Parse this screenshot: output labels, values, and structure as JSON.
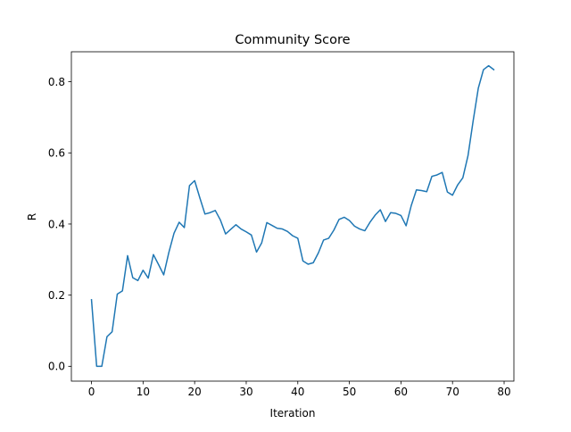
{
  "chart_data": {
    "type": "line",
    "title": "Community Score",
    "xlabel": "Iteration",
    "ylabel": "R",
    "xlim": [
      -3.9,
      81.9
    ],
    "ylim": [
      -0.0418,
      0.8843
    ],
    "xticks": [
      0,
      10,
      20,
      30,
      40,
      50,
      60,
      70,
      80
    ],
    "xtick_labels": [
      "0",
      "10",
      "20",
      "30",
      "40",
      "50",
      "60",
      "70",
      "80"
    ],
    "yticks": [
      0.0,
      0.2,
      0.4,
      0.6,
      0.8
    ],
    "ytick_labels": [
      "0.0",
      "0.2",
      "0.4",
      "0.6",
      "0.8"
    ],
    "grid": false,
    "series": [
      {
        "color": "#1f77b4",
        "x": [
          0,
          1,
          2,
          3,
          4,
          5,
          6,
          7,
          8,
          9,
          10,
          11,
          12,
          13,
          14,
          15,
          16,
          17,
          18,
          19,
          20,
          21,
          22,
          23,
          24,
          25,
          26,
          27,
          28,
          29,
          30,
          31,
          32,
          33,
          34,
          35,
          36,
          37,
          38,
          39,
          40,
          41,
          42,
          43,
          44,
          45,
          46,
          47,
          48,
          49,
          50,
          51,
          52,
          53,
          54,
          55,
          56,
          57,
          58,
          59,
          60,
          61,
          62,
          63,
          64,
          65,
          66,
          67,
          68,
          69,
          70,
          71,
          72,
          73,
          74,
          75,
          76,
          77,
          78
        ],
        "y": [
          0.187,
          0.0,
          0.0,
          0.083,
          0.097,
          0.203,
          0.212,
          0.311,
          0.249,
          0.241,
          0.27,
          0.248,
          0.314,
          0.286,
          0.257,
          0.32,
          0.374,
          0.405,
          0.39,
          0.508,
          0.522,
          0.474,
          0.428,
          0.432,
          0.438,
          0.411,
          0.372,
          0.385,
          0.398,
          0.386,
          0.378,
          0.369,
          0.321,
          0.347,
          0.404,
          0.396,
          0.388,
          0.386,
          0.379,
          0.367,
          0.36,
          0.296,
          0.287,
          0.291,
          0.319,
          0.355,
          0.36,
          0.383,
          0.413,
          0.419,
          0.41,
          0.394,
          0.386,
          0.381,
          0.405,
          0.425,
          0.44,
          0.407,
          0.432,
          0.43,
          0.424,
          0.395,
          0.452,
          0.496,
          0.494,
          0.491,
          0.534,
          0.538,
          0.545,
          0.49,
          0.481,
          0.51,
          0.53,
          0.592,
          0.69,
          0.782,
          0.834,
          0.845,
          0.834
        ]
      }
    ]
  }
}
